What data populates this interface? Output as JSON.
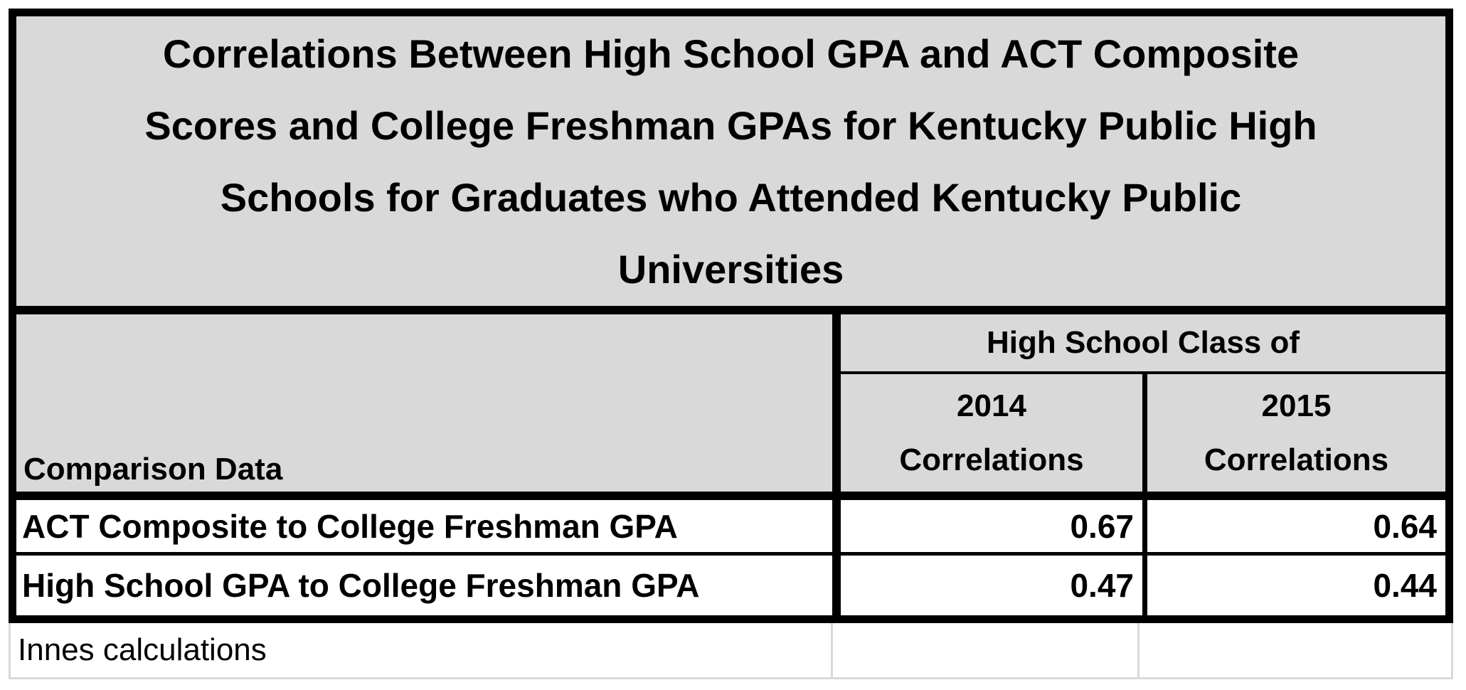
{
  "table": {
    "title_lines": [
      "Correlations Between High School GPA and ACT Composite",
      "Scores and College Freshman GPAs for Kentucky Public High",
      "Schools for Graduates who Attended Kentucky Public",
      "Universities"
    ],
    "row_header": "Comparison Data",
    "col_group_header": "High School Class of",
    "col_headers": [
      {
        "year": "2014",
        "label": "Correlations"
      },
      {
        "year": "2015",
        "label": "Correlations"
      }
    ],
    "rows": [
      {
        "label": "ACT Composite to College Freshman GPA",
        "values": [
          "0.67",
          "0.64"
        ]
      },
      {
        "label": "High School GPA to College Freshman GPA",
        "values": [
          "0.47",
          "0.44"
        ]
      }
    ],
    "footnote": "Innes calculations"
  },
  "colors": {
    "header_bg": "#d9d9d9",
    "border": "#000000",
    "light_border": "#d9d9d9",
    "body_bg": "#ffffff"
  },
  "chart_data": {
    "type": "table",
    "title": "Correlations Between High School GPA and ACT Composite Scores and College Freshman GPAs for Kentucky Public High Schools for Graduates who Attended Kentucky Public Universities",
    "column_group": "High School Class of",
    "columns": [
      "Comparison Data",
      "2014 Correlations",
      "2015 Correlations"
    ],
    "rows": [
      {
        "label": "ACT Composite to College Freshman GPA",
        "correlation_2014": 0.67,
        "correlation_2015": 0.64
      },
      {
        "label": "High School GPA to College Freshman GPA",
        "correlation_2014": 0.47,
        "correlation_2015": 0.44
      }
    ],
    "source_note": "Innes calculations"
  }
}
